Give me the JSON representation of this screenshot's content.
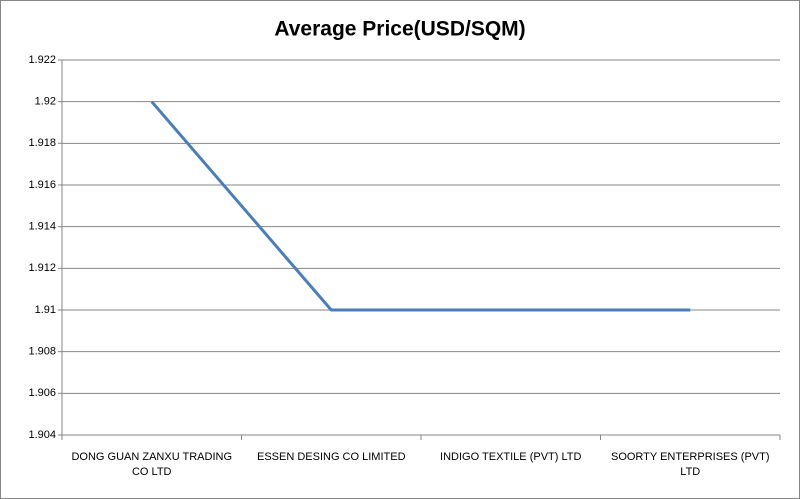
{
  "chart_data": {
    "type": "line",
    "title": "Average Price(USD/SQM)",
    "categories": [
      "DONG GUAN ZANXU TRADING CO LTD",
      "ESSEN DESING CO LIMITED",
      "INDIGO TEXTILE (PVT) LTD",
      "SOORTY ENTERPRISES (PVT) LTD"
    ],
    "values": [
      1.92,
      1.91,
      1.91,
      1.91
    ],
    "color": "#4a7ebb",
    "ylim": [
      1.904,
      1.922
    ],
    "yticks": [
      1.904,
      1.906,
      1.908,
      1.91,
      1.912,
      1.914,
      1.916,
      1.918,
      1.92,
      1.922
    ],
    "grid": true
  }
}
